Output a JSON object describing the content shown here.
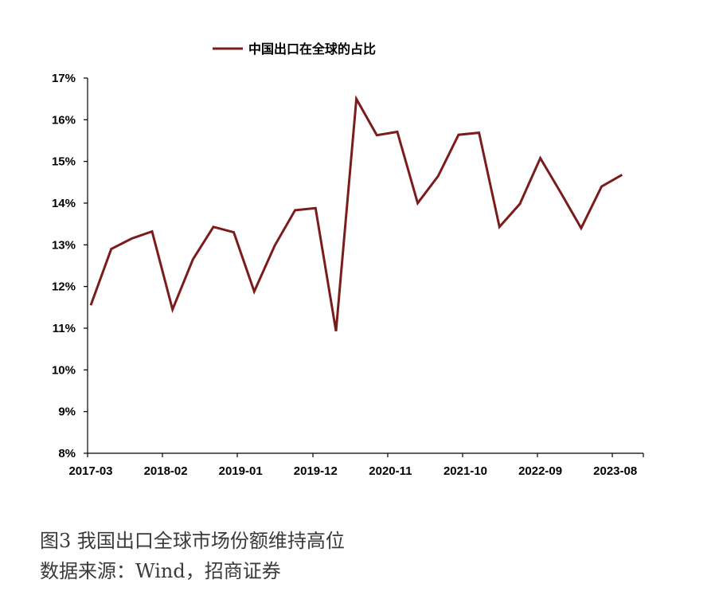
{
  "chart_data": {
    "type": "line",
    "legend": {
      "label": "中国出口在全球的占比",
      "position": "top-center"
    },
    "x_tick_labels": [
      "2017-03",
      "2018-02",
      "2019-01",
      "2019-12",
      "2020-11",
      "2021-10",
      "2022-09",
      "2023-08"
    ],
    "y_ticks": [
      "8%",
      "9%",
      "10%",
      "11%",
      "12%",
      "13%",
      "14%",
      "15%",
      "16%",
      "17%"
    ],
    "ylim": [
      8,
      17
    ],
    "grid": false,
    "series": [
      {
        "name": "中国出口在全球的占比",
        "color": "#7b1c1c",
        "x": [
          "2017-03",
          "2017-06",
          "2017-09",
          "2017-12",
          "2018-03",
          "2018-06",
          "2018-09",
          "2018-12",
          "2019-03",
          "2019-06",
          "2019-09",
          "2019-12",
          "2020-03",
          "2020-06",
          "2020-09",
          "2020-12",
          "2021-03",
          "2021-06",
          "2021-09",
          "2021-12",
          "2022-03",
          "2022-06",
          "2022-09",
          "2022-12",
          "2023-03",
          "2023-06",
          "2023-09"
        ],
        "values": [
          11.55,
          12.9,
          13.15,
          13.32,
          11.45,
          12.65,
          13.43,
          13.3,
          11.88,
          12.98,
          13.83,
          13.88,
          10.93,
          16.5,
          15.63,
          15.71,
          14.0,
          14.65,
          15.64,
          15.69,
          13.43,
          13.98,
          15.08,
          14.25,
          13.4,
          14.4,
          14.68
        ]
      }
    ]
  },
  "caption": {
    "title": "图3   我国出口全球市场份额维持高位",
    "source": "数据来源：Wind，招商证券"
  }
}
